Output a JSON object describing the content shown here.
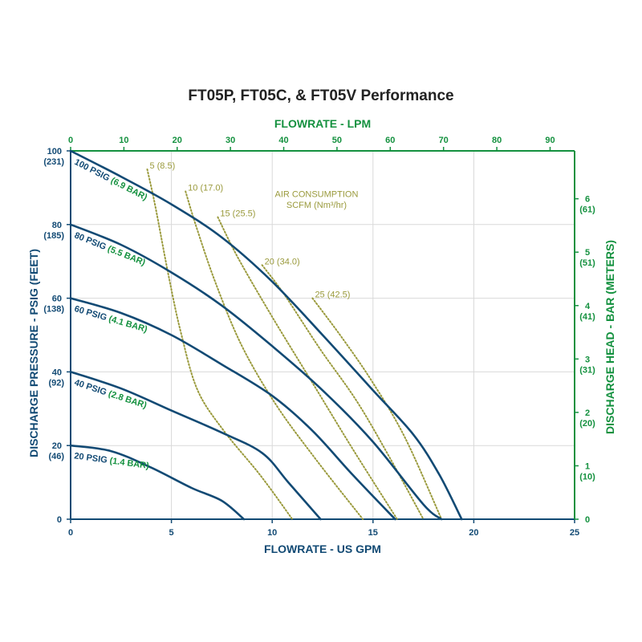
{
  "chart_data": {
    "type": "line",
    "title": "FT05P, FT05C, & FT05V Performance",
    "top_axis_label": "FLOWRATE - LPM",
    "bottom_axis_label": "FLOWRATE - US GPM",
    "left_axis_label": "DISCHARGE PRESSURE - PSIG (FEET)",
    "right_axis_label": "DISCHARGE HEAD - BAR (METERS)",
    "xlim": [
      0,
      25
    ],
    "ylim": [
      0,
      100
    ],
    "x_ticks": [
      "0",
      "5",
      "10",
      "15",
      "20",
      "25"
    ],
    "x_tick_values": [
      0,
      5,
      10,
      15,
      20,
      25
    ],
    "top_ticks": [
      "0",
      "10",
      "20",
      "30",
      "40",
      "50",
      "60",
      "70",
      "80",
      "90"
    ],
    "top_tick_values": [
      0,
      10,
      20,
      30,
      40,
      50,
      60,
      70,
      80,
      90
    ],
    "top_lim": [
      0,
      94.6
    ],
    "left_ticks": [
      {
        "value": 0,
        "label": "0",
        "sub": ""
      },
      {
        "value": 20,
        "label": "20",
        "sub": "(46)"
      },
      {
        "value": 40,
        "label": "40",
        "sub": "(92)"
      },
      {
        "value": 60,
        "label": "60",
        "sub": "(138)"
      },
      {
        "value": 80,
        "label": "80",
        "sub": "(185)"
      },
      {
        "value": 100,
        "label": "100",
        "sub": "(231)"
      }
    ],
    "right_ticks": [
      {
        "value": 0,
        "label": "0",
        "sub": ""
      },
      {
        "value": 14.5,
        "label": "1",
        "sub": "(10)"
      },
      {
        "value": 29,
        "label": "2",
        "sub": "(20)"
      },
      {
        "value": 43.5,
        "label": "3",
        "sub": "(31)"
      },
      {
        "value": 58,
        "label": "4",
        "sub": "(41)"
      },
      {
        "value": 72.5,
        "label": "5",
        "sub": "(51)"
      },
      {
        "value": 87,
        "label": "6",
        "sub": "(61)"
      }
    ],
    "grid": true,
    "series": [
      {
        "name": "20 PSIG",
        "bar_label": "(1.4 BAR)",
        "x": [
          0,
          2,
          4,
          6,
          7.5,
          8.6
        ],
        "y": [
          20,
          18.5,
          14,
          8.5,
          5,
          0
        ]
      },
      {
        "name": "40 PSIG",
        "bar_label": "(2.8 BAR)",
        "x": [
          0,
          2.5,
          5,
          7.5,
          9.5,
          10.8,
          12.4
        ],
        "y": [
          40,
          35.5,
          29.5,
          23.5,
          18,
          10,
          0
        ]
      },
      {
        "name": "60 PSIG",
        "bar_label": "(4.1 BAR)",
        "x": [
          0,
          2.5,
          5,
          7.5,
          10,
          12,
          14,
          16.1
        ],
        "y": [
          60,
          56,
          50,
          42,
          33.5,
          24,
          12,
          0
        ]
      },
      {
        "name": "80 PSIG",
        "bar_label": "(5.5 BAR)",
        "x": [
          0,
          2.5,
          5,
          7.5,
          10,
          12.5,
          15,
          17.5,
          18.4
        ],
        "y": [
          80,
          74.5,
          67,
          58,
          47,
          35,
          21,
          4,
          0
        ]
      },
      {
        "name": "100 PSIG",
        "bar_label": "(6.9 BAR)",
        "x": [
          0,
          2.5,
          5,
          7.5,
          10,
          12.5,
          15,
          17,
          18.3,
          19.4
        ],
        "y": [
          100,
          93,
          85.5,
          76.5,
          64.5,
          50,
          35,
          23,
          12,
          0
        ]
      }
    ],
    "air_consumption": {
      "title_line1": "AIR CONSUMPTION",
      "title_line2": "SCFM (Nm³/hr)",
      "curves": [
        {
          "label": "5 (8.5)",
          "x": [
            3.8,
            4.2,
            4.9,
            5.5,
            6.3,
            7.6,
            9.4,
            11.0
          ],
          "y": [
            95,
            85,
            65,
            50,
            35,
            24,
            12,
            0
          ]
        },
        {
          "label": "10 (17.0)",
          "x": [
            5.7,
            6.2,
            7.2,
            8.5,
            10.2,
            12.2,
            14.5
          ],
          "y": [
            89,
            80,
            64,
            47,
            31,
            16,
            0
          ]
        },
        {
          "label": "15 (25.5)",
          "x": [
            7.3,
            8.3,
            10.1,
            12.0,
            14.0,
            16.2
          ],
          "y": [
            82,
            71,
            54,
            37,
            19,
            0
          ]
        },
        {
          "label": "20 (34.0)",
          "x": [
            9.5,
            10.6,
            12.4,
            14.2,
            15.8,
            17.5
          ],
          "y": [
            69,
            61,
            46,
            32,
            17,
            0
          ]
        },
        {
          "label": "25 (42.5)",
          "x": [
            12.0,
            13.5,
            15.0,
            16.6,
            18.4
          ],
          "y": [
            60,
            49,
            37,
            22,
            0
          ]
        }
      ]
    }
  }
}
